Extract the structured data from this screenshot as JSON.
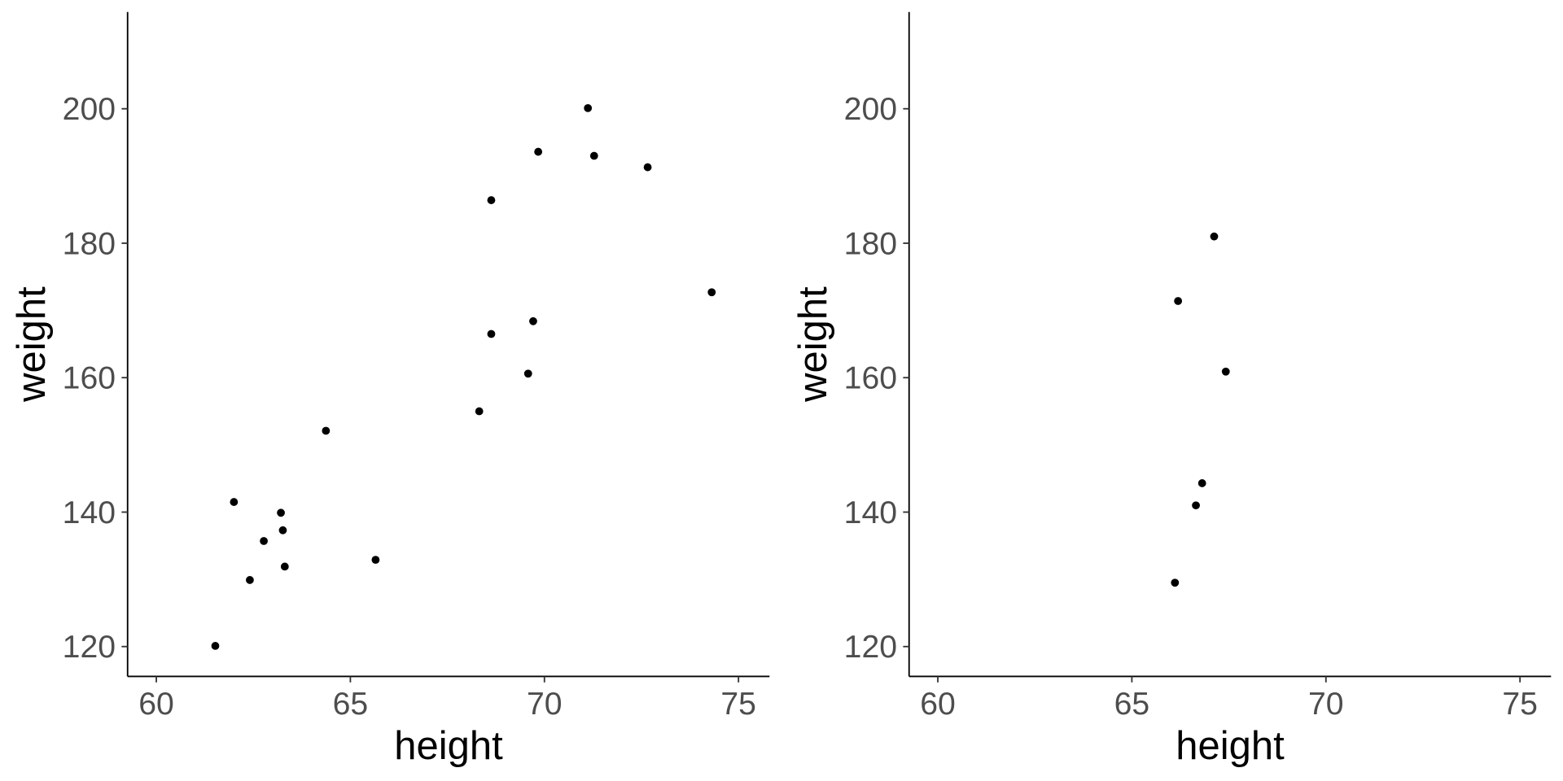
{
  "chart_data": [
    {
      "type": "scatter",
      "x_label": "height",
      "y_label": "weight",
      "color": "#000000",
      "x": [
        71.12,
        69.84,
        71.28,
        72.66,
        68.63,
        74.31,
        69.71,
        68.63,
        69.58,
        68.32,
        64.37,
        62.0,
        63.21,
        63.26,
        62.77,
        63.31,
        65.65,
        62.41,
        61.52
      ],
      "values": [
        200.1,
        193.6,
        193.0,
        191.3,
        186.4,
        172.7,
        168.4,
        166.5,
        160.6,
        155.0,
        152.1,
        141.5,
        139.9,
        137.3,
        135.7,
        131.9,
        132.9,
        129.9,
        120.1
      ],
      "xlim": [
        59.26,
        75.8
      ],
      "xticks": [
        60,
        65,
        70,
        75
      ],
      "ylim": [
        115.56,
        214.4
      ],
      "yticks": [
        120,
        140,
        160,
        180,
        200
      ]
    },
    {
      "type": "scatter",
      "x_label": "height",
      "y_label": "weight",
      "color": "#000000",
      "x": [
        67.12,
        66.19,
        67.42,
        66.81,
        66.65,
        66.11
      ],
      "values": [
        181.0,
        171.4,
        160.9,
        144.3,
        141.0,
        129.5
      ],
      "xlim": [
        59.26,
        75.8
      ],
      "xticks": [
        60,
        65,
        70,
        75
      ],
      "ylim": [
        115.56,
        214.4
      ],
      "yticks": [
        120,
        140,
        160,
        180,
        200
      ]
    }
  ]
}
